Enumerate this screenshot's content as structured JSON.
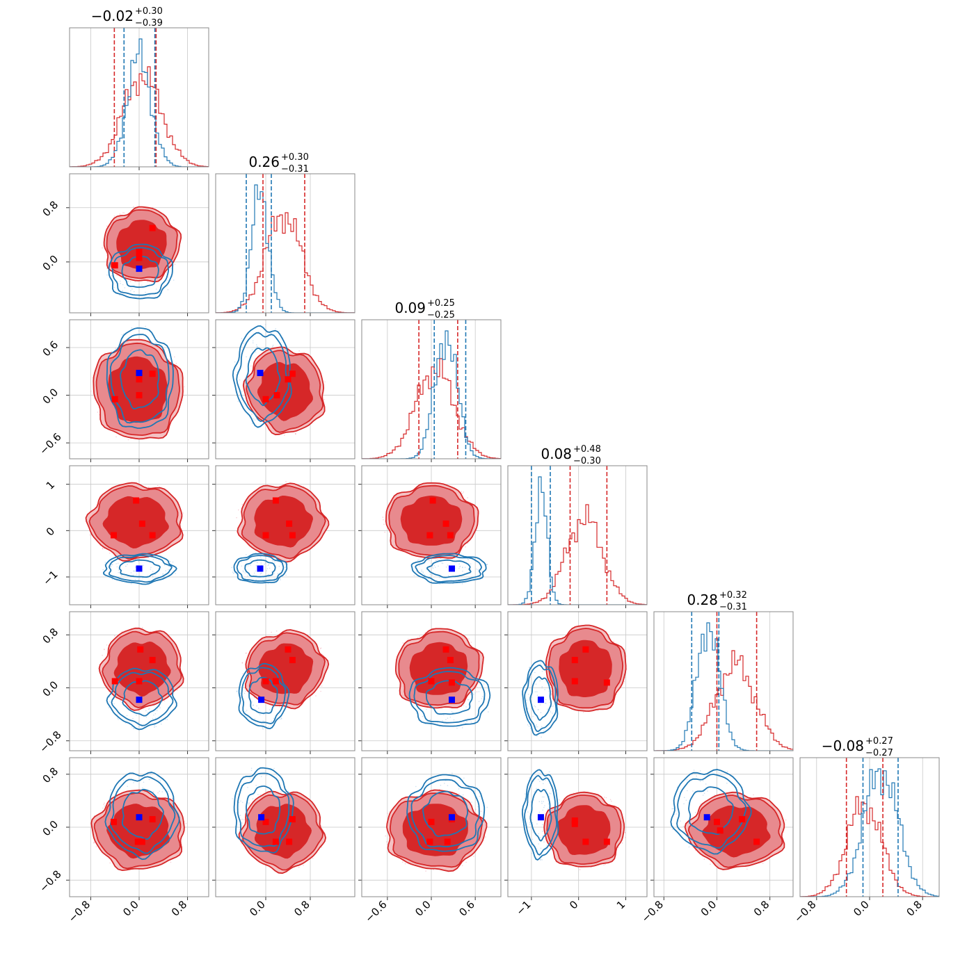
{
  "chart_data": {
    "type": "corner",
    "n_params": 6,
    "grid": true,
    "series": [
      {
        "role": "distribution-a",
        "color": "#d62728",
        "fill": "#d62728"
      },
      {
        "role": "distribution-b",
        "color": "#1f77b4"
      }
    ],
    "marker_colors": {
      "a": "#ff0000",
      "b": "#0000ff"
    },
    "diagonal": [
      {
        "index": 0,
        "title_main": "−0.02",
        "title_plus": "+0.30",
        "title_minus": "−0.39",
        "xlim": [
          -1.15,
          1.15
        ],
        "ticks": [
          -0.8,
          0.0,
          0.8
        ],
        "tick_labels": [
          "−0.8",
          "0.0",
          "0.8"
        ],
        "red_hist": {
          "mean": 0.05,
          "std": 0.32
        },
        "blue_hist": {
          "mean": 0.0,
          "std": 0.2
        },
        "red_lines": [
          -0.41,
          0.28
        ],
        "blue_lines": [
          -0.25,
          0.26
        ]
      },
      {
        "index": 1,
        "title_main": "0.26",
        "title_plus": "+0.30",
        "title_minus": "−0.31",
        "xlim": [
          -0.9,
          1.6
        ],
        "ticks": [
          0.0,
          0.8
        ],
        "tick_labels": [
          "0.0",
          "0.8"
        ],
        "red_hist": {
          "mean": 0.32,
          "std": 0.32
        },
        "blue_hist": {
          "mean": -0.1,
          "std": 0.15
        },
        "red_lines": [
          -0.05,
          0.7
        ],
        "blue_lines": [
          -0.35,
          0.1
        ]
      },
      {
        "index": 2,
        "title_main": "0.09",
        "title_plus": "+0.25",
        "title_minus": "−0.25",
        "xlim": [
          -0.95,
          0.95
        ],
        "ticks": [
          -0.6,
          0.0,
          0.6
        ],
        "tick_labels": [
          "−0.6",
          "0.0",
          "0.6"
        ],
        "red_hist": {
          "mean": 0.05,
          "std": 0.26
        },
        "blue_hist": {
          "mean": 0.2,
          "std": 0.15
        },
        "red_lines": [
          -0.17,
          0.36
        ],
        "blue_lines": [
          0.04,
          0.47
        ]
      },
      {
        "index": 3,
        "title_main": "0.08",
        "title_plus": "+0.48",
        "title_minus": "−0.30",
        "xlim": [
          -1.5,
          1.45
        ],
        "ticks": [
          -1,
          0,
          1
        ],
        "tick_labels": [
          "−1",
          "0",
          "1"
        ],
        "red_hist": {
          "mean": 0.12,
          "std": 0.38
        },
        "blue_hist": {
          "mean": -0.8,
          "std": 0.13
        },
        "red_lines": [
          -0.18,
          0.6
        ],
        "blue_lines": [
          -1.0,
          -0.6
        ]
      },
      {
        "index": 4,
        "title_main": "0.28",
        "title_plus": "+0.32",
        "title_minus": "−0.31",
        "xlim": [
          -0.95,
          1.15
        ],
        "ticks": [
          -0.8,
          0.0,
          0.8
        ],
        "tick_labels": [
          "−0.8",
          "0.0",
          "0.8"
        ],
        "red_hist": {
          "mean": 0.28,
          "std": 0.3
        },
        "blue_hist": {
          "mean": -0.13,
          "std": 0.17
        },
        "red_lines": [
          0.0,
          0.6
        ],
        "blue_lines": [
          -0.38,
          0.03
        ]
      },
      {
        "index": 5,
        "title_main": "−0.08",
        "title_plus": "+0.27",
        "title_minus": "−0.27",
        "xlim": [
          -1.05,
          1.05
        ],
        "ticks": [
          -0.8,
          0.0,
          0.8
        ],
        "tick_labels": [
          "−0.8",
          "0.0",
          "0.8"
        ],
        "red_hist": {
          "mean": -0.08,
          "std": 0.26
        },
        "blue_hist": {
          "mean": 0.17,
          "std": 0.26
        },
        "red_lines": [
          -0.35,
          0.2
        ],
        "blue_lines": [
          -0.1,
          0.43
        ]
      }
    ],
    "row_axes": [
      {
        "row": 1,
        "ylim": [
          -0.75,
          1.3
        ],
        "ticks": [
          0.0,
          0.8
        ],
        "tick_labels": [
          "0.0",
          "0.8"
        ]
      },
      {
        "row": 2,
        "ylim": [
          -0.8,
          0.95
        ],
        "ticks": [
          -0.6,
          0.0,
          0.6
        ],
        "tick_labels": [
          "−0.6",
          "0.0",
          "0.6"
        ]
      },
      {
        "row": 3,
        "ylim": [
          -1.6,
          1.4
        ],
        "ticks": [
          -1,
          0,
          1
        ],
        "tick_labels": [
          "−1",
          "0",
          "1"
        ]
      },
      {
        "row": 4,
        "ylim": [
          -0.95,
          1.15
        ],
        "ticks": [
          -0.8,
          0.0,
          0.8
        ],
        "tick_labels": [
          "−0.8",
          "0.0",
          "0.8"
        ]
      },
      {
        "row": 5,
        "ylim": [
          -1.05,
          1.05
        ],
        "ticks": [
          -0.8,
          0.0,
          0.8
        ],
        "tick_labels": [
          "−0.8",
          "0.0",
          "0.8"
        ]
      }
    ],
    "panels": [
      {
        "row": 1,
        "col": 0,
        "red": {
          "cx": 0.04,
          "cy": 0.25,
          "rx": 0.58,
          "ry": 0.5,
          "rot": -25
        },
        "blue": {
          "cx": 0.02,
          "cy": -0.15,
          "rx": 0.5,
          "ry": 0.38,
          "rot": -5
        },
        "red_markers": [
          [
            0.22,
            0.5
          ],
          [
            -0.4,
            -0.05
          ],
          [
            0.0,
            0.15
          ],
          [
            0.0,
            0.06
          ]
        ],
        "blue_markers": [
          [
            0.0,
            -0.1
          ]
        ]
      },
      {
        "row": 2,
        "col": 0,
        "red": {
          "cx": -0.02,
          "cy": 0.06,
          "rx": 0.68,
          "ry": 0.58,
          "rot": -10
        },
        "blue": {
          "cx": 0.02,
          "cy": 0.2,
          "rx": 0.52,
          "ry": 0.6,
          "rot": 0
        },
        "red_markers": [
          [
            0.22,
            0.27
          ],
          [
            -0.4,
            -0.05
          ],
          [
            0.0,
            0.0
          ],
          [
            0.0,
            0.2
          ]
        ],
        "blue_markers": [
          [
            0.0,
            0.28
          ]
        ]
      },
      {
        "row": 2,
        "col": 1,
        "red": {
          "cx": 0.35,
          "cy": 0.06,
          "rx": 0.65,
          "ry": 0.5,
          "rot": -20
        },
        "blue": {
          "cx": -0.05,
          "cy": 0.25,
          "rx": 0.48,
          "ry": 0.58,
          "rot": 0
        },
        "red_markers": [
          [
            0.48,
            0.27
          ],
          [
            0.4,
            0.2
          ],
          [
            0.0,
            -0.05
          ],
          [
            0.2,
            0.0
          ]
        ],
        "blue_markers": [
          [
            -0.1,
            0.28
          ]
        ]
      },
      {
        "row": 3,
        "col": 0,
        "red": {
          "cx": -0.05,
          "cy": 0.2,
          "rx": 0.72,
          "ry": 0.75,
          "rot": 0
        },
        "blue": {
          "cx": 0.0,
          "cy": -0.82,
          "rx": 0.55,
          "ry": 0.3,
          "rot": 0
        },
        "red_markers": [
          [
            -0.05,
            0.65
          ],
          [
            0.05,
            0.15
          ],
          [
            -0.42,
            -0.1
          ],
          [
            0.22,
            -0.1
          ]
        ],
        "blue_markers": [
          [
            0.0,
            -0.82
          ]
        ]
      },
      {
        "row": 3,
        "col": 1,
        "red": {
          "cx": 0.3,
          "cy": 0.2,
          "rx": 0.72,
          "ry": 0.75,
          "rot": 0
        },
        "blue": {
          "cx": -0.1,
          "cy": -0.82,
          "rx": 0.45,
          "ry": 0.3,
          "rot": 0
        },
        "red_markers": [
          [
            0.18,
            0.65
          ],
          [
            0.42,
            0.15
          ],
          [
            0.0,
            -0.1
          ],
          [
            0.48,
            -0.1
          ]
        ],
        "blue_markers": [
          [
            -0.1,
            -0.82
          ]
        ]
      },
      {
        "row": 3,
        "col": 2,
        "red": {
          "cx": 0.0,
          "cy": 0.2,
          "rx": 0.58,
          "ry": 0.75,
          "rot": 0
        },
        "blue": {
          "cx": 0.25,
          "cy": -0.82,
          "rx": 0.48,
          "ry": 0.3,
          "rot": 0
        },
        "red_markers": [
          [
            0.02,
            0.65
          ],
          [
            0.2,
            0.15
          ],
          [
            -0.02,
            -0.1
          ],
          [
            0.26,
            -0.1
          ]
        ],
        "blue_markers": [
          [
            0.28,
            -0.82
          ]
        ]
      },
      {
        "row": 4,
        "col": 0,
        "red": {
          "cx": 0.05,
          "cy": 0.3,
          "rx": 0.62,
          "ry": 0.55,
          "rot": -20
        },
        "blue": {
          "cx": 0.05,
          "cy": -0.15,
          "rx": 0.52,
          "ry": 0.42,
          "rot": 0
        },
        "red_markers": [
          [
            0.02,
            0.58
          ],
          [
            0.22,
            0.42
          ],
          [
            -0.4,
            0.1
          ],
          [
            0.0,
            0.1
          ]
        ],
        "blue_markers": [
          [
            0.0,
            -0.18
          ]
        ]
      },
      {
        "row": 4,
        "col": 1,
        "red": {
          "cx": 0.35,
          "cy": 0.28,
          "rx": 0.68,
          "ry": 0.52,
          "rot": -25
        },
        "blue": {
          "cx": -0.05,
          "cy": -0.12,
          "rx": 0.42,
          "ry": 0.45,
          "rot": 0
        },
        "red_markers": [
          [
            0.4,
            0.58
          ],
          [
            0.48,
            0.42
          ],
          [
            0.18,
            0.1
          ],
          [
            0.0,
            0.1
          ]
        ],
        "blue_markers": [
          [
            -0.08,
            -0.18
          ]
        ]
      },
      {
        "row": 4,
        "col": 2,
        "red": {
          "cx": 0.1,
          "cy": 0.28,
          "rx": 0.55,
          "ry": 0.55,
          "rot": -15
        },
        "blue": {
          "cx": 0.25,
          "cy": -0.15,
          "rx": 0.52,
          "ry": 0.42,
          "rot": 0
        },
        "red_markers": [
          [
            0.2,
            0.58
          ],
          [
            0.26,
            0.42
          ],
          [
            0.0,
            0.1
          ],
          [
            0.28,
            0.08
          ]
        ],
        "blue_markers": [
          [
            0.28,
            -0.18
          ]
        ]
      },
      {
        "row": 4,
        "col": 3,
        "red": {
          "cx": 0.15,
          "cy": 0.28,
          "rx": 0.78,
          "ry": 0.6,
          "rot": 0
        },
        "blue": {
          "cx": -0.8,
          "cy": -0.15,
          "rx": 0.35,
          "ry": 0.52,
          "rot": 0
        },
        "red_markers": [
          [
            0.15,
            0.58
          ],
          [
            -0.08,
            0.42
          ],
          [
            0.6,
            0.08
          ],
          [
            -0.08,
            0.1
          ]
        ],
        "blue_markers": [
          [
            -0.8,
            -0.18
          ]
        ]
      },
      {
        "row": 5,
        "col": 0,
        "red": {
          "cx": 0.0,
          "cy": -0.05,
          "rx": 0.7,
          "ry": 0.55,
          "rot": 0
        },
        "blue": {
          "cx": 0.05,
          "cy": 0.2,
          "rx": 0.55,
          "ry": 0.6,
          "rot": 0
        },
        "red_markers": [
          [
            -0.42,
            0.08
          ],
          [
            0.22,
            0.12
          ],
          [
            -0.02,
            -0.22
          ],
          [
            0.05,
            -0.22
          ]
        ],
        "blue_markers": [
          [
            0.0,
            0.15
          ]
        ]
      },
      {
        "row": 5,
        "col": 1,
        "red": {
          "cx": 0.3,
          "cy": -0.05,
          "rx": 0.68,
          "ry": 0.55,
          "rot": 0
        },
        "blue": {
          "cx": -0.05,
          "cy": 0.25,
          "rx": 0.5,
          "ry": 0.6,
          "rot": 0
        },
        "red_markers": [
          [
            0.48,
            0.12
          ],
          [
            0.42,
            -0.22
          ],
          [
            0.18,
            -0.22
          ],
          [
            0.0,
            0.08
          ]
        ],
        "blue_markers": [
          [
            -0.08,
            0.15
          ]
        ]
      },
      {
        "row": 5,
        "col": 2,
        "red": {
          "cx": 0.05,
          "cy": -0.05,
          "rx": 0.62,
          "ry": 0.55,
          "rot": 0
        },
        "blue": {
          "cx": 0.2,
          "cy": 0.2,
          "rx": 0.5,
          "ry": 0.55,
          "rot": 0
        },
        "red_markers": [
          [
            0.22,
            -0.22
          ],
          [
            -0.02,
            -0.22
          ],
          [
            0.28,
            0.12
          ],
          [
            0.0,
            0.08
          ]
        ],
        "blue_markers": [
          [
            0.28,
            0.15
          ]
        ]
      },
      {
        "row": 5,
        "col": 3,
        "red": {
          "cx": 0.12,
          "cy": -0.05,
          "rx": 0.78,
          "ry": 0.52,
          "rot": 0
        },
        "blue": {
          "cx": -0.8,
          "cy": 0.2,
          "rx": 0.35,
          "ry": 0.62,
          "rot": 0
        },
        "red_markers": [
          [
            0.6,
            -0.22
          ],
          [
            0.15,
            -0.22
          ],
          [
            -0.08,
            0.1
          ],
          [
            -0.08,
            0.05
          ]
        ],
        "blue_markers": [
          [
            -0.8,
            0.15
          ]
        ]
      },
      {
        "row": 5,
        "col": 4,
        "red": {
          "cx": 0.3,
          "cy": -0.05,
          "rx": 0.68,
          "ry": 0.52,
          "rot": 0
        },
        "blue": {
          "cx": -0.1,
          "cy": 0.25,
          "rx": 0.55,
          "ry": 0.58,
          "rot": 0
        },
        "red_markers": [
          [
            0.6,
            -0.22
          ],
          [
            0.38,
            0.12
          ],
          [
            0.0,
            0.08
          ],
          [
            0.05,
            -0.05
          ]
        ],
        "blue_markers": [
          [
            -0.15,
            0.15
          ]
        ]
      }
    ]
  }
}
